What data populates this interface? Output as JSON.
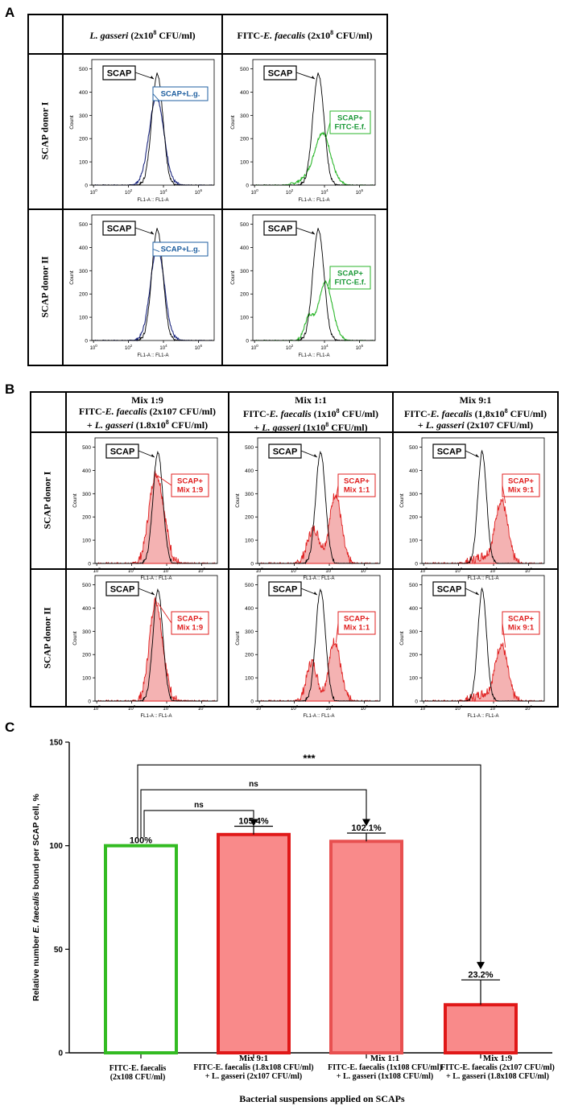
{
  "panels": {
    "a": "A",
    "b": "B",
    "c": "C"
  },
  "panel_a": {
    "col_headers": [
      {
        "name_italic": "L. gasseri",
        "conc": " (2x10",
        "exp": "8",
        "tail": " CFU/ml)"
      },
      {
        "prefix": "FITC-",
        "name_italic": "E. faecalis",
        "conc": " (2x10",
        "exp": "8",
        "tail": " CFU/ml)"
      }
    ],
    "row_labels": [
      "SCAP donor I",
      "SCAP donor II"
    ]
  },
  "panel_b": {
    "col_headers": [
      {
        "l1": "Mix 1:9",
        "l2a": "FITC-",
        "l2i": "E. faecalis",
        "l2b": " (2x107 CFU/ml)",
        "l3a": "+ ",
        "l3i": "L. gasseri",
        "l3b": " (1.8x10",
        "l3e": "8",
        "l3c": " CFU/ml)"
      },
      {
        "l1": "Mix 1:1",
        "l2a": "FITC-",
        "l2i": "E. faecalis",
        "l2b": " (1x10",
        "l2e": "8",
        "l2c": " CFU/ml)",
        "l3a": "+ ",
        "l3i": "L. gasseri",
        "l3b": " (1x10",
        "l3e": "8",
        "l3c": " CFU/ml)"
      },
      {
        "l1": "Mix 9:1",
        "l2a": "FITC-",
        "l2i": "E. faecalis",
        "l2b": " (1,8x10",
        "l2e": "8",
        "l2c": " CFU/ml)",
        "l3a": "+ ",
        "l3i": "L. gasseri",
        "l3b": " (2x107 CFU/ml)"
      }
    ],
    "row_labels": [
      "SCAP donor I",
      "SCAP donor II"
    ]
  },
  "histogram": {
    "y_ticks": [
      "500",
      "400",
      "300",
      "200",
      "100",
      "0"
    ],
    "y_label": "Count",
    "x_ticks": [
      {
        "base": "10",
        "exp": "0"
      },
      {
        "base": "10",
        "exp": "2"
      },
      {
        "base": "10",
        "exp": "4"
      },
      {
        "base": "10",
        "exp": "6"
      }
    ],
    "x_label": "FL1-A :: FL1-A",
    "scap_label": "SCAP",
    "labels": {
      "lg": "SCAP+L.g.",
      "ef_line1": "SCAP+",
      "ef_line2": "FITC-E.f.",
      "mix_line1": "SCAP+",
      "mix19": "Mix 1:9",
      "mix11": "Mix 1:1",
      "mix91": "Mix 9:1"
    },
    "colors": {
      "scap": "#000000",
      "lg": "#1f2a80",
      "lg_text": "#1f5fa0",
      "ef": "#2bb62b",
      "ef_text": "#1e9a3a",
      "mix": "#e02020",
      "mix_fill": "#f4b2b2"
    }
  },
  "chart_data": {
    "type": "bar",
    "title": "",
    "ylabel": "Relative number E. faecalis bound per SCAP cell, %",
    "ylabel_parts": [
      "Relative number ",
      "E. faecalis",
      " bound per SCAP cell, %"
    ],
    "xlabel": "Bacterial suspensions applied on SCAPs",
    "ylim": [
      0,
      150
    ],
    "y_ticks": [
      0,
      50,
      100,
      150
    ],
    "categories": [
      {
        "l1": "FITC-E. faecalis",
        "l2": "(2x108 CFU/ml)"
      },
      {
        "l0": "Mix 9:1",
        "l1": "FITC-E. faecalis (1.8x108 CFU/ml)",
        "l2": "+ L. gasseri (2x107 CFU/ml)"
      },
      {
        "l0": "Mix 1:1",
        "l1": "FITC-E. faecalis (1x108 CFU/ml)",
        "l2": "+ L. gasseri (1x108 CFU/ml)"
      },
      {
        "l0": "Mix 1:9",
        "l1": "FITC-E. faecalis (2x107 CFU/ml)",
        "l2": "+ L. gasseri (1.8x108 CFU/ml)"
      }
    ],
    "values": [
      100,
      105.4,
      102.1,
      23.2
    ],
    "errors": [
      0,
      4,
      4,
      12
    ],
    "value_labels": [
      "100%",
      "105.4%",
      "102.1%",
      "23.2%"
    ],
    "edge_colors": [
      "#33bb22",
      "#e01818",
      "#e85050",
      "#e01818"
    ],
    "fill_colors": [
      "#ffffff",
      "#f98a8a",
      "#f98a8a",
      "#f98a8a"
    ],
    "significance": [
      {
        "from": 0,
        "to": 1,
        "label": "ns"
      },
      {
        "from": 0,
        "to": 2,
        "label": "ns"
      },
      {
        "from": 0,
        "to": 3,
        "label": "***"
      }
    ]
  }
}
